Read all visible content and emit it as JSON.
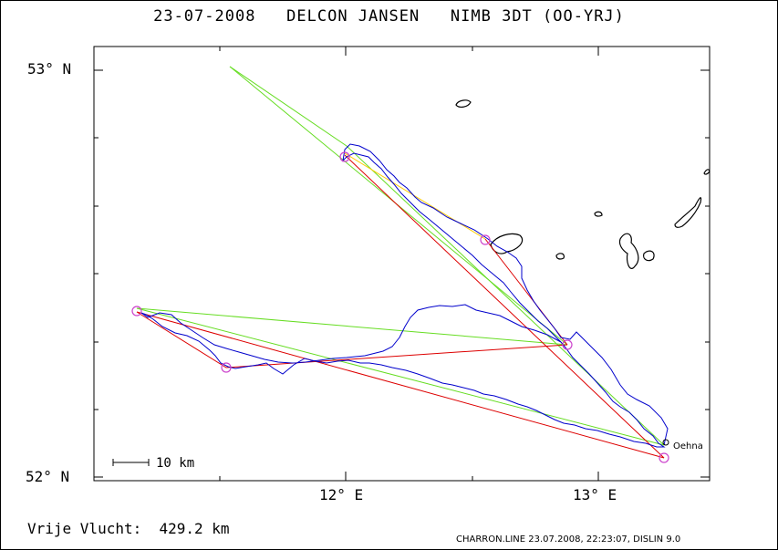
{
  "title": "23-07-2008   DELCON JANSEN   NIMB 3DT (OO-YRJ)",
  "axes": {
    "lat_top": "53° N",
    "lat_bottom": "52° N",
    "lon_left": "12° E",
    "lon_right": "13° E"
  },
  "scale_bar": {
    "label": "10 km"
  },
  "place_label": "Oehna",
  "footer": {
    "distance_text": "Vrije Vlucht:  429.2 km",
    "credit": "CHARRON.LINE 23.07.2008, 22:23:07, DISLIN 9.0"
  },
  "colors": {
    "track": "#0000cc",
    "task_red": "#dd0000",
    "task_green": "#66dd22",
    "task_yellow": "#ffcc00",
    "turnpoint": "#cc44cc"
  }
}
